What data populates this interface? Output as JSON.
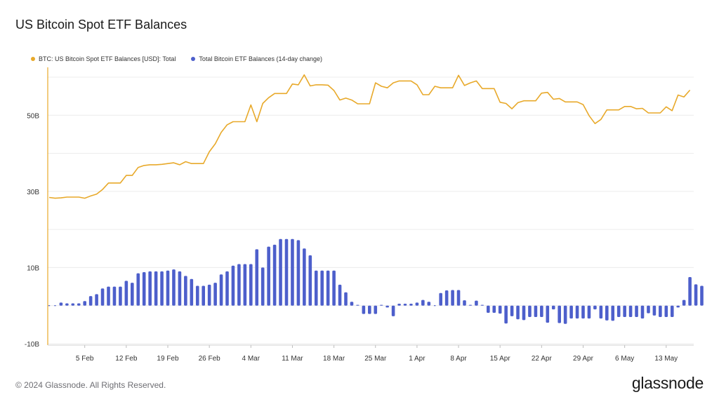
{
  "title": "US Bitcoin Spot ETF Balances",
  "footer": {
    "copyright": "© 2024 Glassnode. All Rights Reserved.",
    "brand": "glassnode"
  },
  "colors": {
    "balance_line": "#E8A92A",
    "change_bars": "#4D5FCB",
    "grid": "#ECECEC",
    "axis": "#E8A92A"
  },
  "chart_data": {
    "type": "bar+line",
    "title": "US Bitcoin Spot ETF Balances",
    "legend": {
      "placement": "top-left",
      "entries": [
        "BTC: US Bitcoin Spot ETF Balances [USD]: Total",
        "Total Bitcoin ETF Balances (14-day change)"
      ]
    },
    "grid": true,
    "ylim": [
      -10,
      60
    ],
    "y_ticks": [
      {
        "value": 50,
        "label": "50B"
      },
      {
        "value": 30,
        "label": "30B"
      },
      {
        "value": 10,
        "label": "10B"
      },
      {
        "value": -10,
        "label": "-10B"
      }
    ],
    "x_ticks": [
      {
        "date": "2024-02-05",
        "label": "5 Feb"
      },
      {
        "date": "2024-02-12",
        "label": "12 Feb"
      },
      {
        "date": "2024-02-19",
        "label": "19 Feb"
      },
      {
        "date": "2024-02-26",
        "label": "26 Feb"
      },
      {
        "date": "2024-03-04",
        "label": "4 Mar"
      },
      {
        "date": "2024-03-11",
        "label": "11 Mar"
      },
      {
        "date": "2024-03-18",
        "label": "18 Mar"
      },
      {
        "date": "2024-03-25",
        "label": "25 Mar"
      },
      {
        "date": "2024-04-01",
        "label": "1 Apr"
      },
      {
        "date": "2024-04-08",
        "label": "8 Apr"
      },
      {
        "date": "2024-04-15",
        "label": "15 Apr"
      },
      {
        "date": "2024-04-22",
        "label": "22 Apr"
      },
      {
        "date": "2024-04-29",
        "label": "29 Apr"
      },
      {
        "date": "2024-05-06",
        "label": "6 May"
      },
      {
        "date": "2024-05-13",
        "label": "13 May"
      }
    ],
    "x_start": "2024-01-30",
    "series": [
      {
        "name": "BTC: US Bitcoin Spot ETF Balances [USD]: Total",
        "type": "line",
        "unit": "B USD",
        "values": [
          28.4,
          28.2,
          28.3,
          28.5,
          28.5,
          28.5,
          28.2,
          28.8,
          29.3,
          30.5,
          32.2,
          32.2,
          32.2,
          34.2,
          34.2,
          36.3,
          36.8,
          37.0,
          37.0,
          37.1,
          37.3,
          37.5,
          37.0,
          37.8,
          37.3,
          37.3,
          37.3,
          40.4,
          42.5,
          45.5,
          47.5,
          48.3,
          48.3,
          48.3,
          52.7,
          48.3,
          53.1,
          54.6,
          55.7,
          55.7,
          55.7,
          58.2,
          58.0,
          60.6,
          57.7,
          58.0,
          58.0,
          57.9,
          56.5,
          54.0,
          54.5,
          54.0,
          53.0,
          53.0,
          53.0,
          58.5,
          57.6,
          57.2,
          58.5,
          59.0,
          59.0,
          59.0,
          58.0,
          55.4,
          55.4,
          57.6,
          57.2,
          57.2,
          57.2,
          60.5,
          57.8,
          58.5,
          59.0,
          57.0,
          57.0,
          57.0,
          53.4,
          53.1,
          51.7,
          53.3,
          53.8,
          53.8,
          53.8,
          55.8,
          56.0,
          54.2,
          54.4,
          53.5,
          53.5,
          53.5,
          52.8,
          49.9,
          47.8,
          48.9,
          51.4,
          51.4,
          51.4,
          52.3,
          52.3,
          51.7,
          51.8,
          50.6,
          50.6,
          50.6,
          52.2,
          51.2,
          55.3,
          54.8,
          56.6
        ]
      },
      {
        "name": "Total Bitcoin ETF Balances (14-day change)",
        "type": "bar",
        "unit": "B USD",
        "values": [
          0,
          0,
          0.8,
          0.6,
          0.6,
          0.6,
          1.2,
          2.5,
          3.0,
          4.5,
          5.0,
          5.0,
          5.0,
          6.5,
          6.0,
          8.5,
          8.8,
          9.0,
          9.0,
          9.0,
          9.2,
          9.5,
          9.0,
          7.8,
          7.0,
          5.2,
          5.2,
          5.5,
          6.0,
          8.2,
          9.0,
          10.5,
          10.9,
          10.9,
          10.9,
          14.8,
          10.0,
          15.5,
          16.0,
          17.5,
          17.5,
          17.5,
          17.2,
          15.0,
          13.2,
          9.2,
          9.2,
          9.2,
          9.2,
          5.5,
          3.5,
          1.0,
          0.2,
          -2.2,
          -2.2,
          -2.2,
          0.2,
          -0.5,
          -2.8,
          0.5,
          0.5,
          0.5,
          0.8,
          1.5,
          1.0,
          0,
          3.3,
          4.0,
          4.1,
          4.1,
          1.4,
          0.2,
          1.3,
          0.2,
          -1.9,
          -1.9,
          -2.1,
          -4.7,
          -2.8,
          -3.6,
          -3.8,
          -3.0,
          -3.0,
          -3.0,
          -4.5,
          -1.0,
          -4.6,
          -4.8,
          -3.4,
          -3.4,
          -3.4,
          -3.4,
          -1.0,
          -3.4,
          -3.9,
          -4.0,
          -3.0,
          -3.0,
          -3.0,
          -3.0,
          -3.4,
          -2.0,
          -2.6,
          -3.0,
          -3.0,
          -3.0,
          -0.5,
          1.5,
          7.5,
          5.6,
          5.2
        ]
      }
    ]
  }
}
